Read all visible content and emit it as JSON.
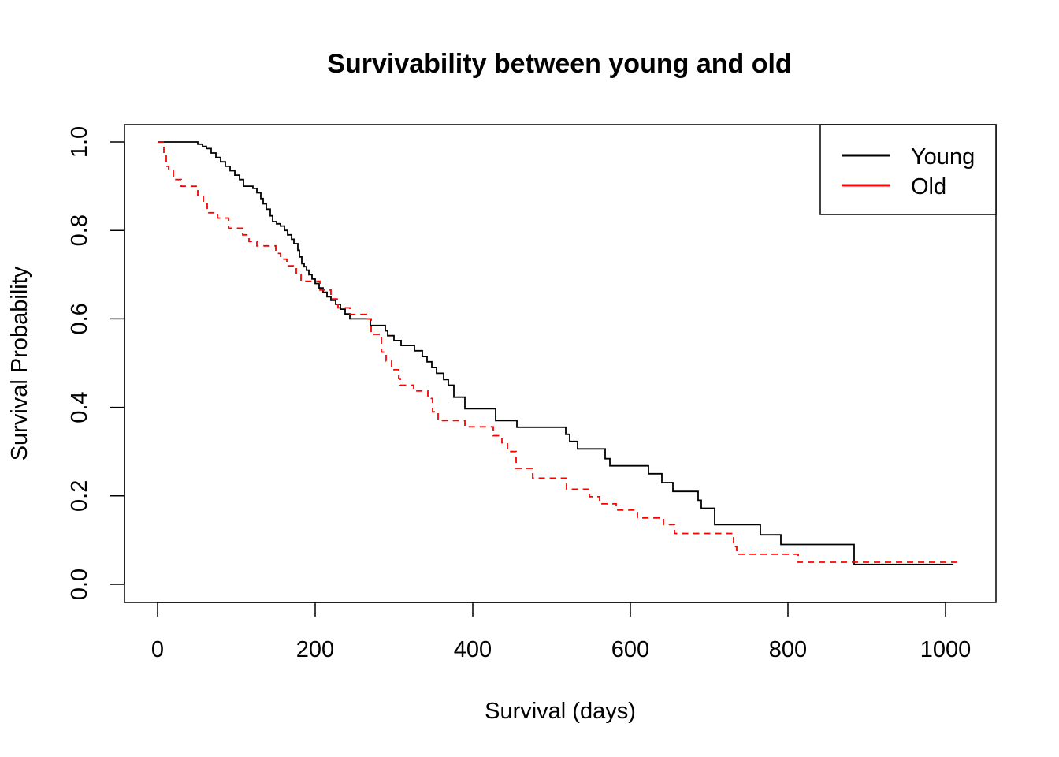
{
  "chart_data": {
    "type": "line",
    "step": true,
    "title": "Survivability between young and old",
    "xlabel": "Survival (days)",
    "ylabel": "Survival Probability",
    "xlim": [
      -50,
      1060
    ],
    "ylim": [
      -0.04,
      1.04
    ],
    "xticks": [
      0,
      200,
      400,
      600,
      800,
      1000
    ],
    "xtick_labels": [
      "0",
      "200",
      "400",
      "600",
      "800",
      "1000"
    ],
    "yticks": [
      0,
      0.2,
      0.4,
      0.6,
      0.8,
      1.0
    ],
    "ytick_labels": [
      "0.0",
      "0.2",
      "0.4",
      "0.6",
      "0.8",
      "1.0"
    ],
    "grid": false,
    "legend_position": "top-right",
    "series": [
      {
        "name": "Young",
        "color": "#000000",
        "dash": "solid",
        "x": [
          0,
          51,
          57,
          62,
          68,
          74,
          80,
          86,
          92,
          98,
          104,
          109,
          121,
          126,
          131,
          134,
          138,
          143,
          146,
          151,
          156,
          161,
          165,
          170,
          173,
          178,
          180,
          183,
          186,
          189,
          192,
          196,
          200,
          205,
          210,
          215,
          220,
          226,
          232,
          238,
          244,
          270,
          289,
          292,
          300,
          309,
          326,
          336,
          342,
          348,
          354,
          363,
          369,
          376,
          390,
          429,
          456,
          518,
          523,
          533,
          568,
          574,
          623,
          640,
          654,
          686,
          690,
          707,
          765,
          791,
          884,
          1010
        ],
        "y": [
          1.0,
          0.995,
          0.99,
          0.985,
          0.975,
          0.965,
          0.955,
          0.945,
          0.935,
          0.925,
          0.915,
          0.9,
          0.895,
          0.885,
          0.872,
          0.86,
          0.848,
          0.833,
          0.82,
          0.815,
          0.81,
          0.8,
          0.79,
          0.78,
          0.77,
          0.755,
          0.74,
          0.725,
          0.718,
          0.71,
          0.7,
          0.69,
          0.68,
          0.67,
          0.66,
          0.65,
          0.642,
          0.633,
          0.622,
          0.611,
          0.6,
          0.585,
          0.573,
          0.562,
          0.551,
          0.54,
          0.528,
          0.515,
          0.503,
          0.49,
          0.477,
          0.463,
          0.45,
          0.423,
          0.397,
          0.37,
          0.355,
          0.339,
          0.323,
          0.306,
          0.284,
          0.268,
          0.25,
          0.23,
          0.21,
          0.19,
          0.172,
          0.135,
          0.112,
          0.09,
          0.045,
          0.045
        ]
      },
      {
        "name": "Old",
        "color": "#ff0000",
        "dash": "dashed",
        "x": [
          0,
          8,
          11,
          14,
          20,
          30,
          51,
          58,
          63,
          76,
          90,
          108,
          116,
          126,
          150,
          156,
          164,
          176,
          182,
          206,
          220,
          229,
          244,
          265,
          271,
          284,
          290,
          297,
          306,
          308,
          325,
          343,
          349,
          356,
          366,
          390,
          426,
          437,
          444,
          455,
          476,
          519,
          548,
          561,
          582,
          609,
          642,
          656,
          731,
          735,
          813,
          1020
        ],
        "y": [
          1.0,
          0.97,
          0.945,
          0.935,
          0.915,
          0.9,
          0.88,
          0.86,
          0.84,
          0.828,
          0.805,
          0.79,
          0.775,
          0.765,
          0.748,
          0.735,
          0.72,
          0.7,
          0.685,
          0.665,
          0.645,
          0.625,
          0.61,
          0.6,
          0.565,
          0.525,
          0.505,
          0.485,
          0.465,
          0.45,
          0.437,
          0.42,
          0.39,
          0.37,
          0.37,
          0.356,
          0.336,
          0.32,
          0.3,
          0.262,
          0.24,
          0.215,
          0.198,
          0.182,
          0.168,
          0.15,
          0.135,
          0.115,
          0.085,
          0.068,
          0.05,
          0.05
        ]
      }
    ]
  }
}
